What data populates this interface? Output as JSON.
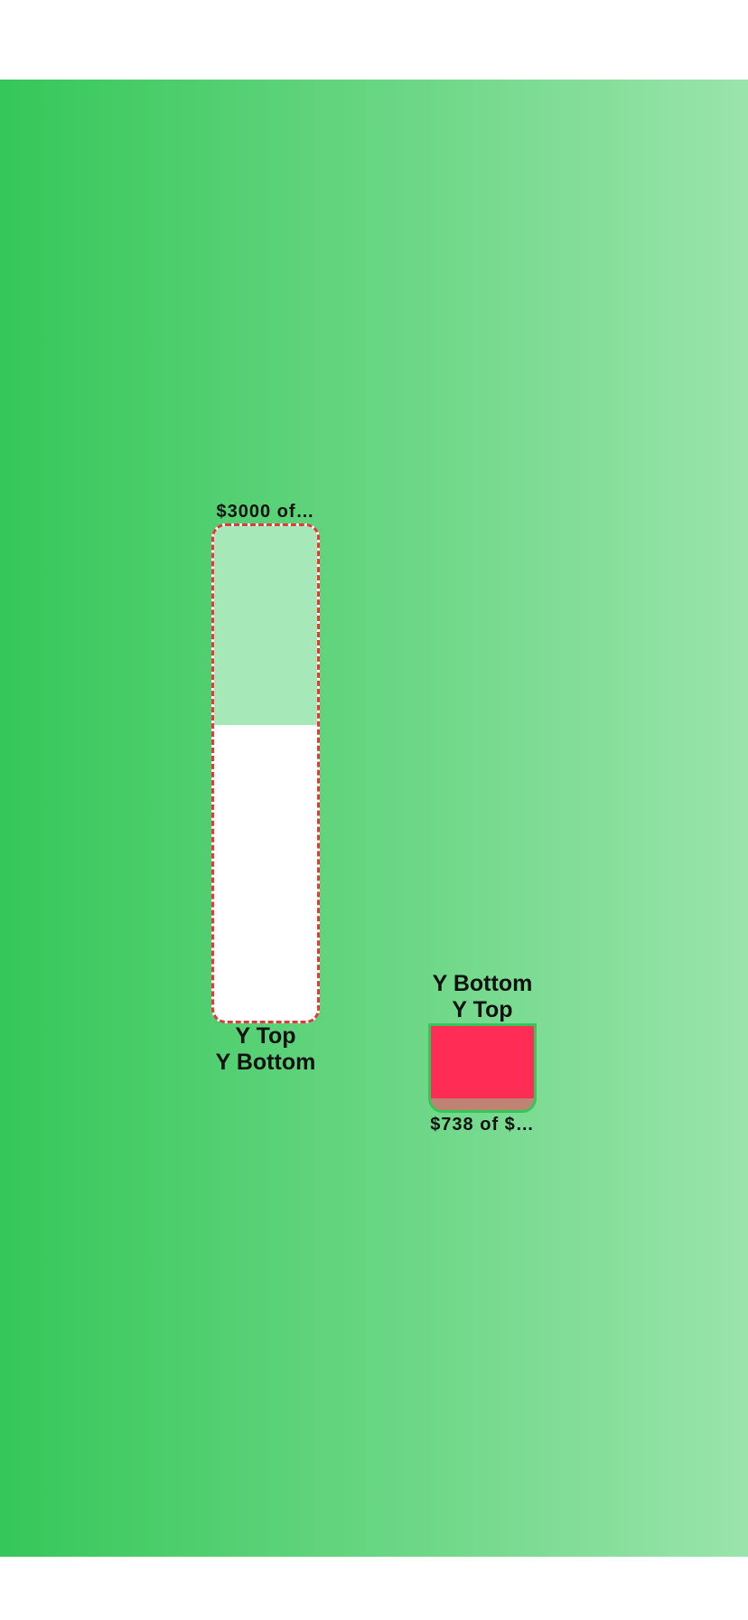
{
  "background": {
    "gradient_start": "#35c759",
    "gradient_end": "#9ae4ab"
  },
  "bars": [
    {
      "amount_label": "$3000 of…",
      "caption_line1": "Y Top",
      "caption_line2": "Y Bottom",
      "fill_fraction": 0.6,
      "fill_color": "#ffffff",
      "track_color": "#a7e8b8",
      "border_color": "#e53935",
      "border_style": "dashed"
    },
    {
      "caption_line1": "Y Bottom",
      "caption_line2": "Y Top",
      "amount_label": "$738 of $…",
      "fill_fraction": 0.8,
      "fill_color": "#ff2d55",
      "track_color": "#bf8373",
      "border_color": "#35c759",
      "border_style": "solid"
    }
  ]
}
